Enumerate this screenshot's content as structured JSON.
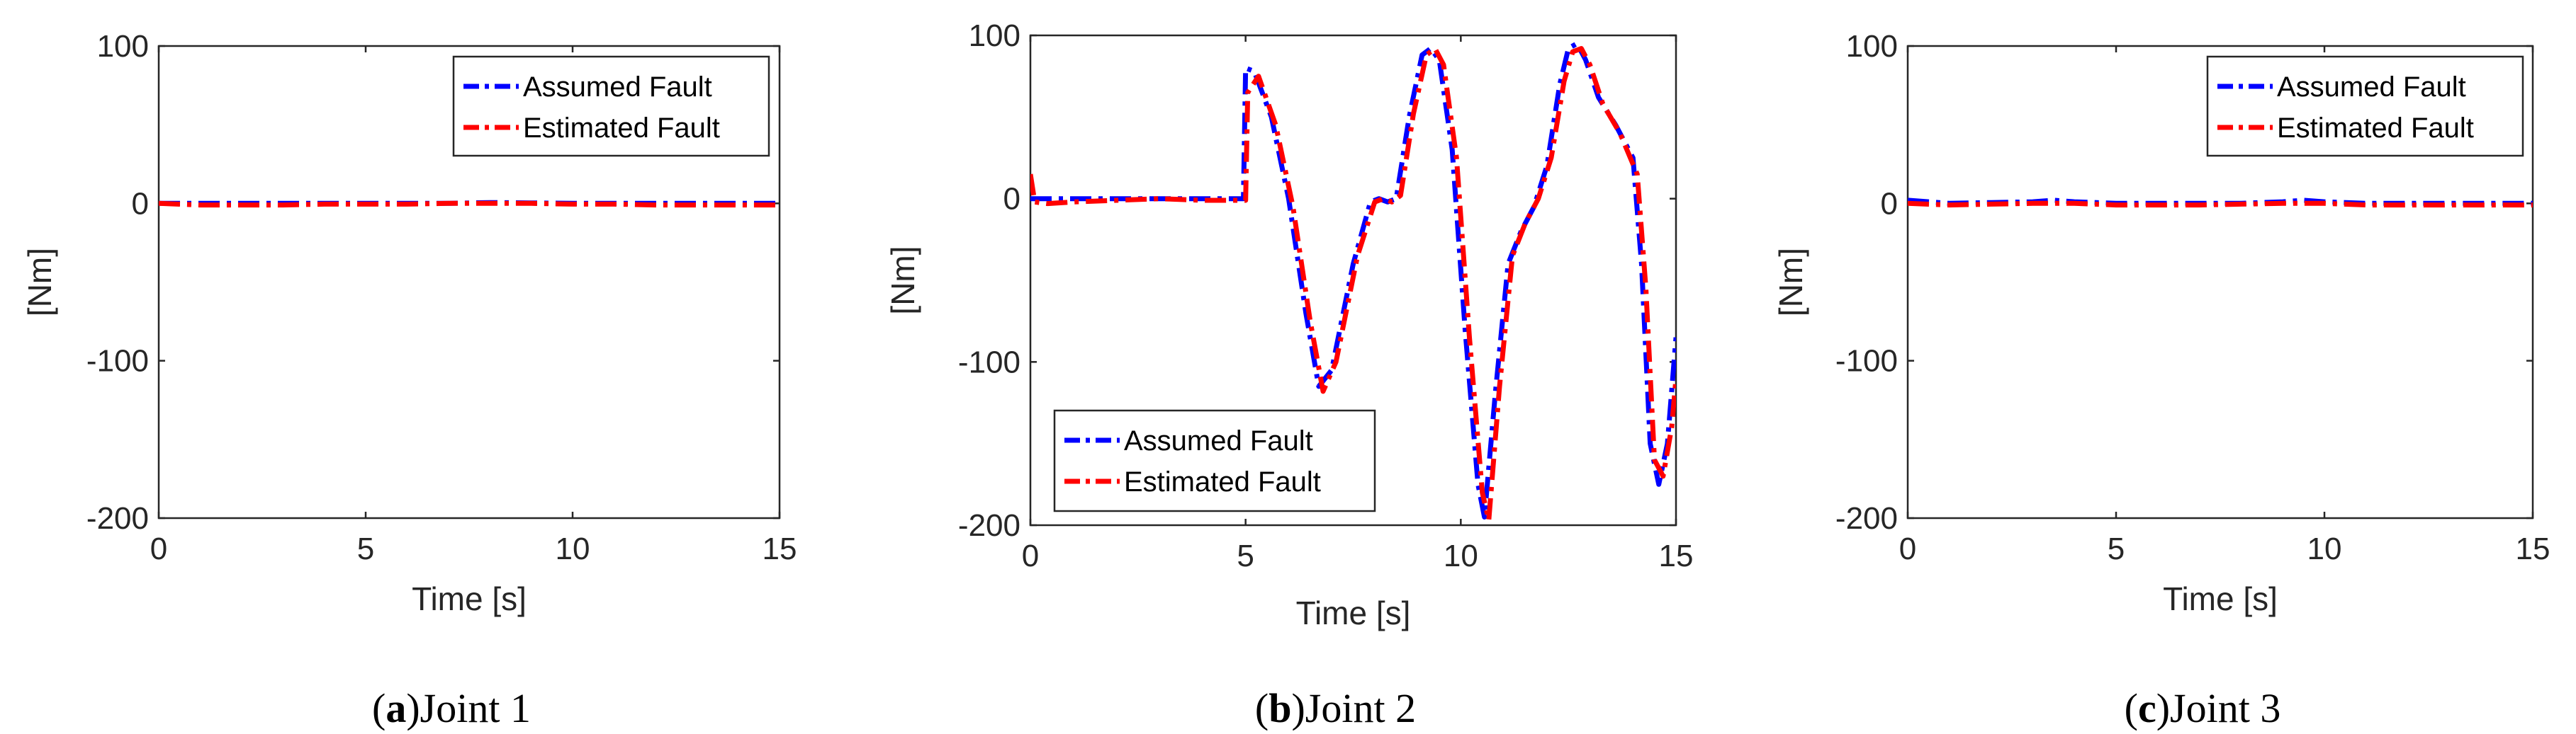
{
  "colors": {
    "assumed": "#0000ff",
    "estimated": "#ff0000",
    "axis": "#262626"
  },
  "chart_data": [
    {
      "type": "line",
      "panel_letter": "a",
      "caption_open": "(",
      "caption_close": ")",
      "caption_text": "Joint 1",
      "xlabel": "Time [s]",
      "ylabel": "[Nm]",
      "xlim": [
        0,
        15
      ],
      "ylim": [
        -200,
        100
      ],
      "xticks": [
        0,
        5,
        10,
        15
      ],
      "xtick_labels": [
        "0",
        "5",
        "10",
        "15"
      ],
      "yticks": [
        -200,
        -100,
        0,
        100
      ],
      "ytick_labels": [
        "-200",
        "-100",
        "0",
        "100"
      ],
      "legend_position": "top-right",
      "legend": [
        "Assumed Fault",
        "Estimated Fault"
      ],
      "series": [
        {
          "name": "Assumed Fault",
          "style": "dashdot",
          "x": [
            0,
            1,
            2,
            3,
            4,
            5,
            6,
            7,
            8,
            9,
            10,
            11,
            12,
            13,
            14,
            15
          ],
          "y": [
            0,
            0,
            0,
            0,
            0,
            0,
            0,
            0,
            0.5,
            0.3,
            0,
            0,
            0,
            0,
            0,
            0
          ]
        },
        {
          "name": "Estimated Fault",
          "style": "dashdot",
          "x": [
            0,
            1,
            2,
            3,
            4,
            5,
            6,
            7,
            8,
            9,
            10,
            11,
            12,
            13,
            14,
            15
          ],
          "y": [
            0,
            -1,
            -1,
            -1,
            -0.5,
            -0.5,
            -0.5,
            0,
            0,
            0,
            -0.5,
            -0.5,
            -1,
            -1,
            -1,
            -1
          ]
        }
      ]
    },
    {
      "type": "line",
      "panel_letter": "b",
      "caption_open": "(",
      "caption_close": ")",
      "caption_text": "Joint 2",
      "xlabel": "Time [s]",
      "ylabel": "[Nm]",
      "xlim": [
        0,
        15
      ],
      "ylim": [
        -200,
        100
      ],
      "xticks": [
        0,
        5,
        10,
        15
      ],
      "xtick_labels": [
        "0",
        "5",
        "10",
        "15"
      ],
      "yticks": [
        -200,
        -100,
        0,
        100
      ],
      "ytick_labels": [
        "-200",
        "-100",
        "0",
        "100"
      ],
      "legend_position": "bottom-left",
      "legend": [
        "Assumed Fault",
        "Estimated Fault"
      ],
      "series": [
        {
          "name": "Assumed Fault",
          "style": "dashdot",
          "x": [
            0,
            1,
            2,
            3,
            4,
            4.95,
            5.0,
            5.2,
            5.6,
            6.0,
            6.4,
            6.7,
            7.0,
            7.5,
            7.9,
            8.1,
            8.3,
            8.5,
            8.8,
            9.1,
            9.3,
            9.5,
            9.8,
            10.1,
            10.4,
            10.55,
            10.8,
            11.1,
            11.4,
            11.7,
            12.0,
            12.3,
            12.5,
            12.7,
            12.9,
            13.2,
            13.6,
            14.0,
            14.2,
            14.4,
            14.6,
            14.8,
            15.0
          ],
          "y": [
            0,
            0,
            0,
            0,
            0,
            0,
            80,
            78,
            50,
            0,
            -70,
            -115,
            -105,
            -40,
            -2,
            0,
            -2,
            0,
            50,
            88,
            92,
            85,
            30,
            -80,
            -175,
            -195,
            -120,
            -40,
            -20,
            -5,
            20,
            70,
            92,
            95,
            85,
            62,
            45,
            25,
            -40,
            -150,
            -175,
            -150,
            -85
          ]
        },
        {
          "name": "Estimated Fault",
          "style": "dashdot",
          "x": [
            0,
            0.1,
            0.4,
            1,
            2,
            3,
            4,
            5.0,
            5.05,
            5.3,
            5.7,
            6.1,
            6.5,
            6.8,
            7.1,
            7.6,
            8.0,
            8.2,
            8.4,
            8.6,
            8.9,
            9.2,
            9.4,
            9.6,
            9.9,
            10.2,
            10.5,
            10.65,
            10.9,
            11.2,
            11.5,
            11.8,
            12.1,
            12.4,
            12.6,
            12.8,
            13.0,
            13.3,
            13.7,
            14.1,
            14.3,
            14.5,
            14.7,
            14.9,
            15.0
          ],
          "y": [
            15,
            -2,
            -3,
            -2,
            -1,
            0,
            -1,
            -1,
            65,
            75,
            45,
            -5,
            -75,
            -118,
            -100,
            -35,
            -2,
            0,
            -2,
            2,
            52,
            88,
            92,
            82,
            25,
            -85,
            -180,
            -197,
            -115,
            -35,
            -15,
            0,
            25,
            72,
            90,
            92,
            82,
            58,
            40,
            15,
            -55,
            -160,
            -170,
            -140,
            -110
          ]
        }
      ]
    },
    {
      "type": "line",
      "panel_letter": "c",
      "caption_open": "(",
      "caption_close": ")",
      "caption_text": "Joint 3",
      "xlabel": "Time [s]",
      "ylabel": "[Nm]",
      "xlim": [
        0,
        15
      ],
      "ylim": [
        -200,
        100
      ],
      "xticks": [
        0,
        5,
        10,
        15
      ],
      "xtick_labels": [
        "0",
        "5",
        "10",
        "15"
      ],
      "yticks": [
        -200,
        -100,
        0,
        100
      ],
      "ytick_labels": [
        "-200",
        "-100",
        "0",
        "100"
      ],
      "legend_position": "top-right",
      "legend": [
        "Assumed Fault",
        "Estimated Fault"
      ],
      "series": [
        {
          "name": "Assumed Fault",
          "style": "dashdot",
          "x": [
            0,
            1,
            2,
            3,
            3.5,
            4,
            5,
            6,
            7,
            8,
            9,
            9.5,
            10,
            11,
            12,
            13,
            14,
            15
          ],
          "y": [
            2,
            0,
            0.5,
            1,
            2,
            1,
            0,
            0,
            0,
            0,
            1,
            2,
            1,
            0,
            0,
            0,
            0,
            0
          ]
        },
        {
          "name": "Estimated Fault",
          "style": "dashdot",
          "x": [
            0,
            1,
            2,
            3,
            4,
            5,
            6,
            7,
            8,
            9,
            10,
            11,
            12,
            13,
            14,
            15
          ],
          "y": [
            0,
            -1,
            -0.5,
            0,
            0,
            -1,
            -1,
            -1,
            -0.5,
            0,
            0,
            -1,
            -1,
            -1,
            -1,
            -1
          ]
        }
      ]
    }
  ]
}
